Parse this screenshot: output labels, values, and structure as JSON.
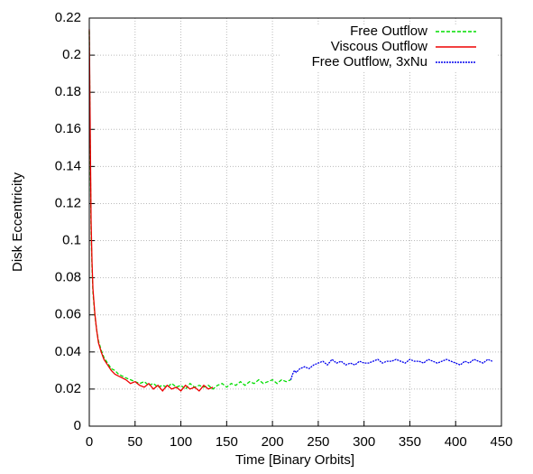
{
  "chart_data": {
    "type": "line",
    "xlabel": "Time [Binary Orbits]",
    "ylabel": "Disk Eccentricity",
    "xlim": [
      0,
      450
    ],
    "xticks": [
      0,
      50,
      100,
      150,
      200,
      250,
      300,
      350,
      400,
      450
    ],
    "ylim": [
      0,
      0.22
    ],
    "yticks": [
      0,
      0.02,
      0.04,
      0.06,
      0.08,
      0.1,
      0.12,
      0.14,
      0.16,
      0.18,
      0.2,
      0.22
    ],
    "grid": true,
    "legend": "top-right",
    "series": [
      {
        "name": "Free Outflow",
        "color": "#00dd00",
        "dash": "dashed",
        "x": [
          0,
          1,
          2,
          3,
          4,
          6,
          8,
          10,
          13,
          16,
          20,
          24,
          28,
          32,
          36,
          40,
          45,
          50,
          55,
          60,
          65,
          70,
          75,
          80,
          85,
          90,
          95,
          100,
          105,
          110,
          115,
          120,
          125,
          130,
          135,
          140,
          145,
          150,
          155,
          160,
          165,
          170,
          175,
          180,
          185,
          190,
          195,
          200,
          205,
          210,
          215,
          220
        ],
        "values": [
          0.213,
          0.15,
          0.105,
          0.085,
          0.072,
          0.06,
          0.052,
          0.046,
          0.041,
          0.037,
          0.034,
          0.031,
          0.03,
          0.028,
          0.027,
          0.026,
          0.025,
          0.024,
          0.023,
          0.024,
          0.022,
          0.023,
          0.021,
          0.022,
          0.021,
          0.023,
          0.021,
          0.022,
          0.02,
          0.023,
          0.021,
          0.022,
          0.021,
          0.022,
          0.02,
          0.022,
          0.023,
          0.021,
          0.023,
          0.022,
          0.024,
          0.022,
          0.024,
          0.023,
          0.025,
          0.023,
          0.024,
          0.025,
          0.023,
          0.025,
          0.024,
          0.025
        ]
      },
      {
        "name": "Viscous Outflow",
        "color": "#ee0000",
        "dash": "solid",
        "x": [
          0,
          1,
          2,
          3,
          4,
          6,
          8,
          10,
          13,
          16,
          20,
          24,
          28,
          32,
          36,
          40,
          45,
          50,
          55,
          60,
          65,
          70,
          75,
          80,
          85,
          90,
          95,
          100,
          105,
          110,
          115,
          120,
          125,
          130,
          135
        ],
        "values": [
          0.214,
          0.16,
          0.11,
          0.088,
          0.074,
          0.061,
          0.052,
          0.045,
          0.04,
          0.036,
          0.033,
          0.03,
          0.028,
          0.027,
          0.026,
          0.025,
          0.023,
          0.024,
          0.022,
          0.021,
          0.023,
          0.02,
          0.022,
          0.019,
          0.022,
          0.02,
          0.021,
          0.019,
          0.022,
          0.02,
          0.021,
          0.019,
          0.022,
          0.02,
          0.021
        ]
      },
      {
        "name": "Free Outflow, 3xNu",
        "color": "#0000ee",
        "dash": "dotted",
        "x": [
          220,
          222,
          224,
          226,
          230,
          235,
          240,
          245,
          250,
          255,
          260,
          265,
          270,
          275,
          280,
          285,
          290,
          295,
          300,
          305,
          310,
          315,
          320,
          325,
          330,
          335,
          340,
          345,
          350,
          355,
          360,
          365,
          370,
          375,
          380,
          385,
          390,
          395,
          400,
          405,
          410,
          415,
          420,
          425,
          430,
          435,
          440
        ],
        "values": [
          0.025,
          0.028,
          0.03,
          0.029,
          0.031,
          0.032,
          0.031,
          0.033,
          0.034,
          0.035,
          0.033,
          0.036,
          0.034,
          0.035,
          0.033,
          0.034,
          0.033,
          0.035,
          0.034,
          0.034,
          0.035,
          0.036,
          0.034,
          0.035,
          0.035,
          0.036,
          0.035,
          0.034,
          0.036,
          0.035,
          0.035,
          0.034,
          0.036,
          0.035,
          0.034,
          0.035,
          0.036,
          0.035,
          0.034,
          0.033,
          0.035,
          0.034,
          0.036,
          0.035,
          0.034,
          0.036,
          0.035
        ]
      }
    ]
  }
}
